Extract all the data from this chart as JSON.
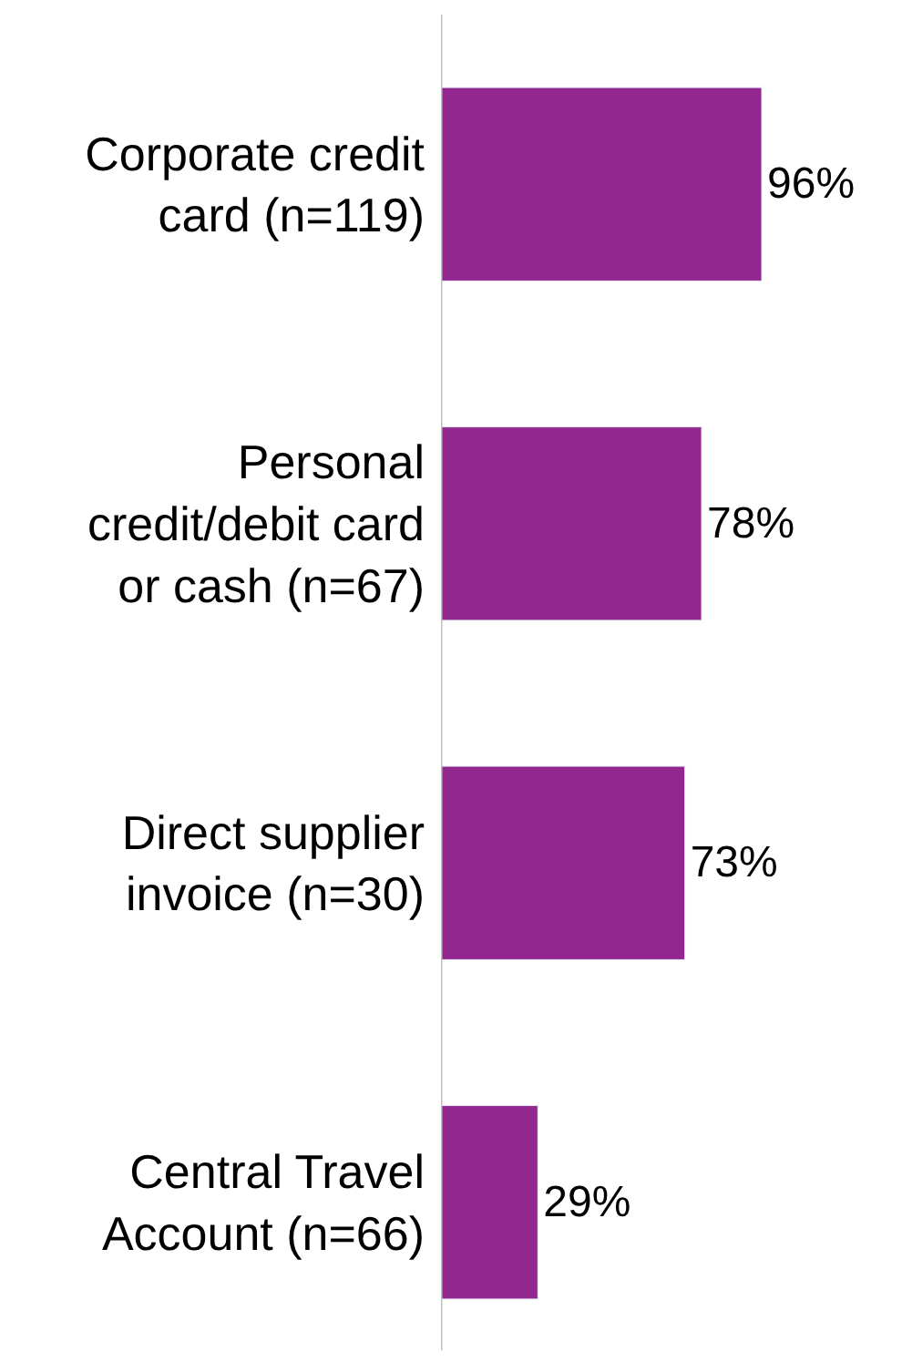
{
  "chart_data": {
    "type": "bar",
    "orientation": "horizontal",
    "categories": [
      "Corporate credit\ncard (n=119)",
      "Personal\ncredit/debit card\nor cash (n=67)",
      "Direct supplier\ninvoice (n=30)",
      "Central Travel\nAccount (n=66)"
    ],
    "values": [
      96,
      78,
      73,
      29
    ],
    "color": "#92278f",
    "value_labels": [
      "96%",
      "78%",
      "73%",
      "29%"
    ],
    "xlim": [
      0,
      138
    ],
    "tick_labels": "y"
  }
}
